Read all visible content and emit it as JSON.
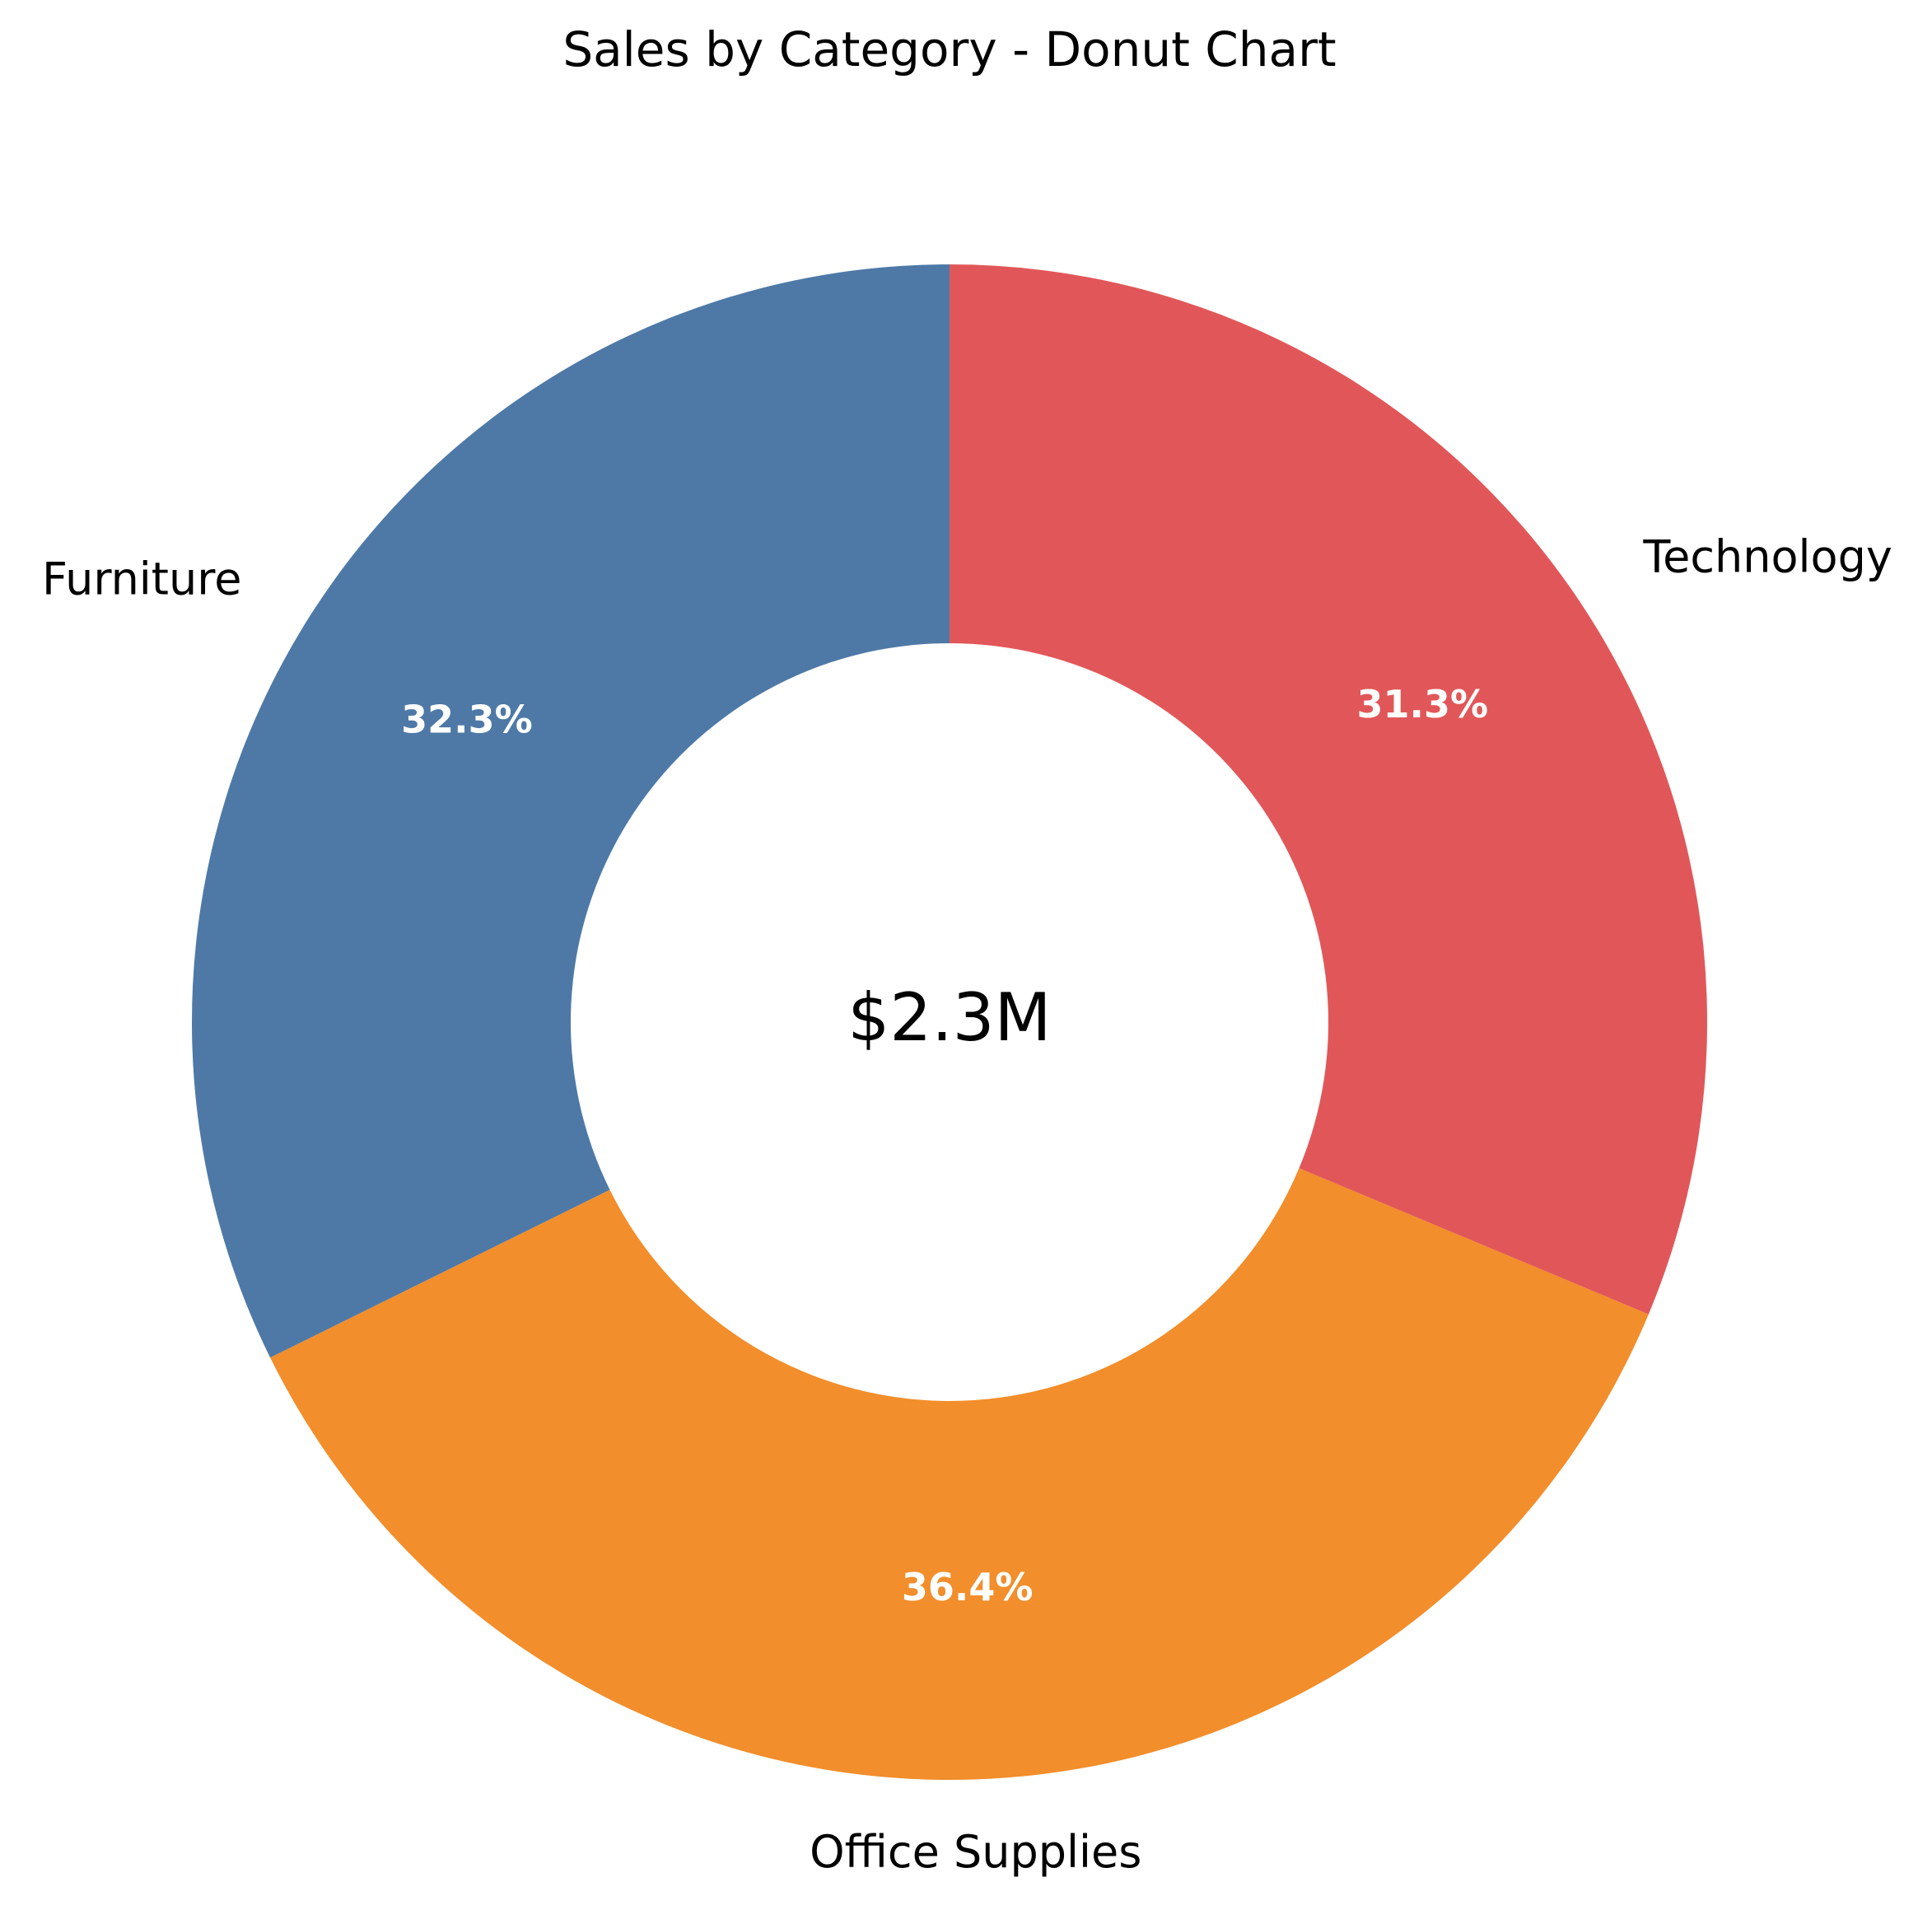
{
  "chart_data": {
    "type": "pie",
    "variant": "donut",
    "title": "Sales by Category - Donut Chart",
    "center_label": "$2.3M",
    "start_angle_deg": 90,
    "direction": "counterclockwise",
    "slices": [
      {
        "label": "Furniture",
        "percent": 32.3,
        "percent_label": "32.3%",
        "color": "#4e79a7"
      },
      {
        "label": "Office Supplies",
        "percent": 36.4,
        "percent_label": "36.4%",
        "color": "#f28e2b"
      },
      {
        "label": "Technology",
        "percent": 31.3,
        "percent_label": "31.3%",
        "color": "#e15759"
      }
    ]
  }
}
